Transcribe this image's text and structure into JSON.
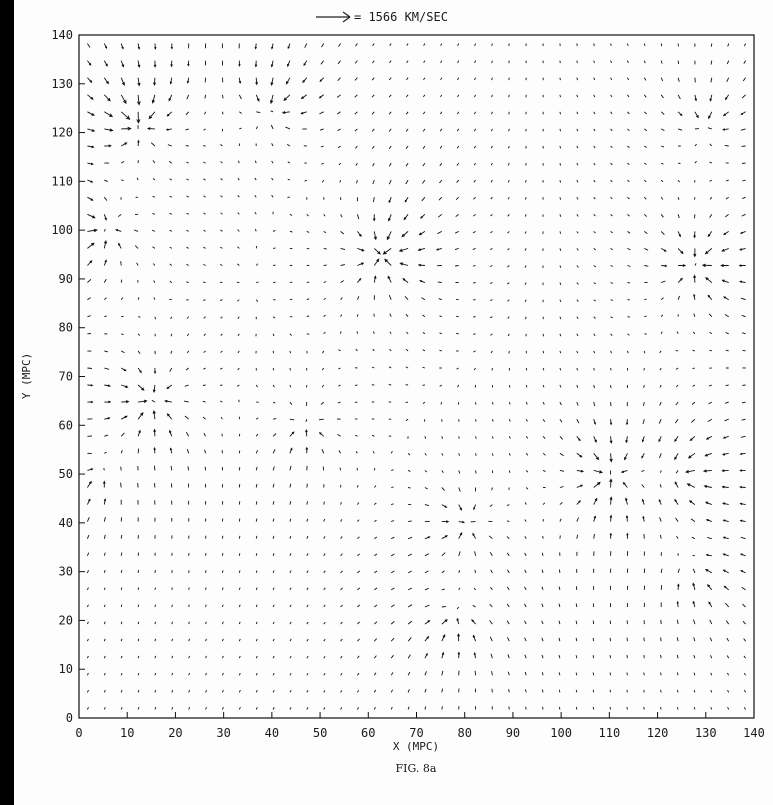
{
  "chart_data": {
    "type": "vector_field",
    "scale_arrow_label": "= 1566 KM/SEC",
    "xlabel": "X (MPC)",
    "ylabel": "Y (MPC)",
    "caption": "FIG. 8a",
    "xlim": [
      0,
      140
    ],
    "ylim": [
      0,
      140
    ],
    "xticks": [
      "0",
      "10",
      "20",
      "30",
      "40",
      "50",
      "60",
      "70",
      "80",
      "90",
      "100",
      "110",
      "120",
      "130",
      "140"
    ],
    "yticks": [
      "0",
      "10",
      "20",
      "30",
      "40",
      "50",
      "60",
      "70",
      "80",
      "90",
      "100",
      "110",
      "120",
      "130",
      "140"
    ],
    "grid_spacing": 3.5,
    "attractors": [
      {
        "x": 12,
        "y": 122,
        "strength": 1.0
      },
      {
        "x": 63,
        "y": 95,
        "strength": 1.0
      },
      {
        "x": 5,
        "y": 100,
        "strength": 0.8
      },
      {
        "x": 40,
        "y": 125,
        "strength": 0.7
      },
      {
        "x": 128,
        "y": 93,
        "strength": 0.9
      },
      {
        "x": 130,
        "y": 122,
        "strength": 0.6
      },
      {
        "x": 15,
        "y": 65,
        "strength": 0.9
      },
      {
        "x": 47,
        "y": 60,
        "strength": 0.6
      },
      {
        "x": 110,
        "y": 50,
        "strength": 0.9
      },
      {
        "x": 125,
        "y": 50,
        "strength": 0.6
      },
      {
        "x": 80,
        "y": 40,
        "strength": 0.7
      },
      {
        "x": 78,
        "y": 20,
        "strength": 0.5
      },
      {
        "x": 128,
        "y": 30,
        "strength": 0.4
      },
      {
        "x": 3,
        "y": 50,
        "strength": 0.4
      }
    ]
  }
}
